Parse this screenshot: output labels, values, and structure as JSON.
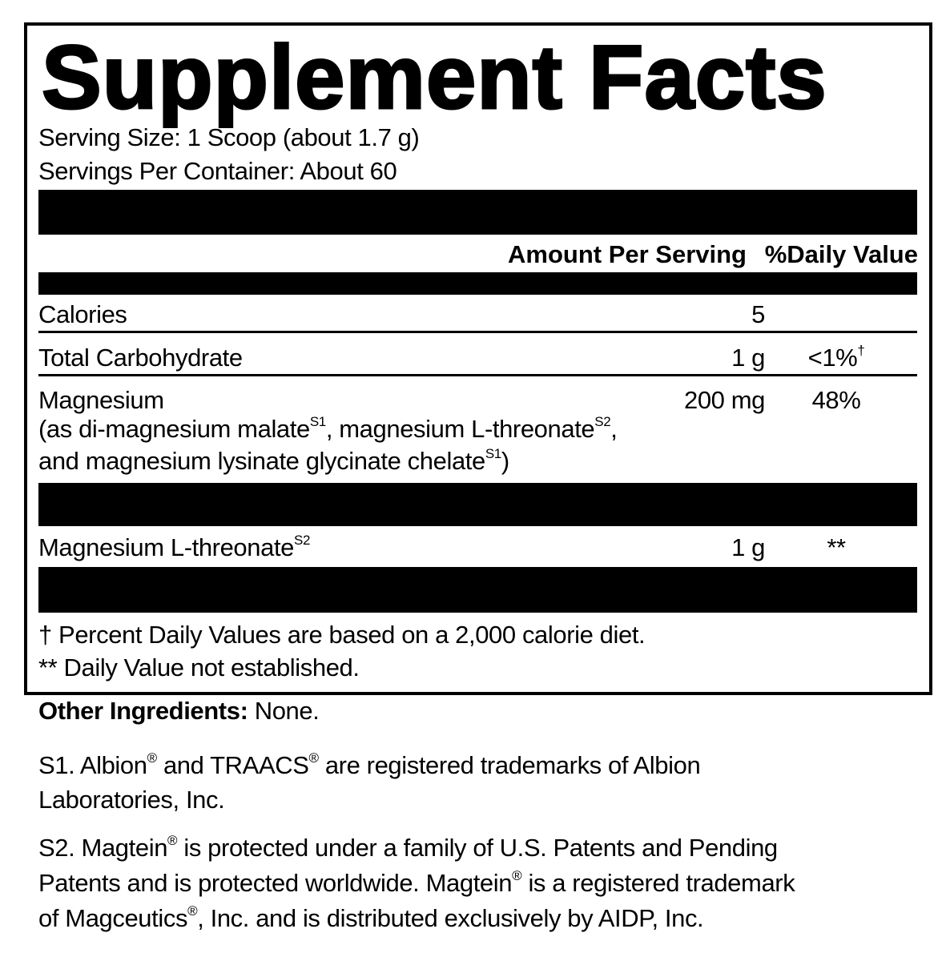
{
  "title": "Supplement Facts",
  "serving_size": "Serving Size: 1 Scoop (about 1.7 g)",
  "servings_per_container": "Servings Per Container: About 60",
  "headers": {
    "amount": "Amount Per Serving",
    "dv": "%Daily Value"
  },
  "rows": [
    {
      "name": "Calories",
      "amount": "5",
      "dv": ""
    },
    {
      "name": "Total Carbohydrate",
      "amount": "1 g",
      "dv": "<1%",
      "dv_mark": "†"
    },
    {
      "name": "Magnesium",
      "amount": "200 mg",
      "dv": "48%",
      "detail": {
        "l1a": "(as di-magnesium malate",
        "s1": "S1",
        "l1b": ", magnesium L-threonate",
        "s2": "S2",
        "l1c": ",",
        "l2a": "and magnesium lysinate glycinate chelate",
        "s3": "S1",
        "l2b": ")"
      }
    },
    {
      "name": "Magnesium L-threonate",
      "sup": "S2",
      "amount": "1 g",
      "dv": "**"
    }
  ],
  "footnotes": [
    "† Percent Daily Values are based on a 2,000 calorie diet.",
    "** Daily Value not established."
  ],
  "other_ingredients": {
    "label": "Other Ingredients:",
    "value": " None."
  },
  "notes": {
    "s1_a": "S1. Albion",
    "s1_b": " and TRAACS",
    "s1_c": " are registered trademarks of Albion",
    "s1_d": "Laboratories, Inc.",
    "s2_a": "S2. Magtein",
    "s2_b": " is protected under a family of U.S. Patents and Pending",
    "s2_c": "Patents and is protected worldwide. Magtein",
    "s2_d": " is a registered trademark",
    "s2_e": "of Magceutics",
    "s2_f": ", Inc. and is distributed exclusively by AIDP, Inc.",
    "reg": "®"
  }
}
